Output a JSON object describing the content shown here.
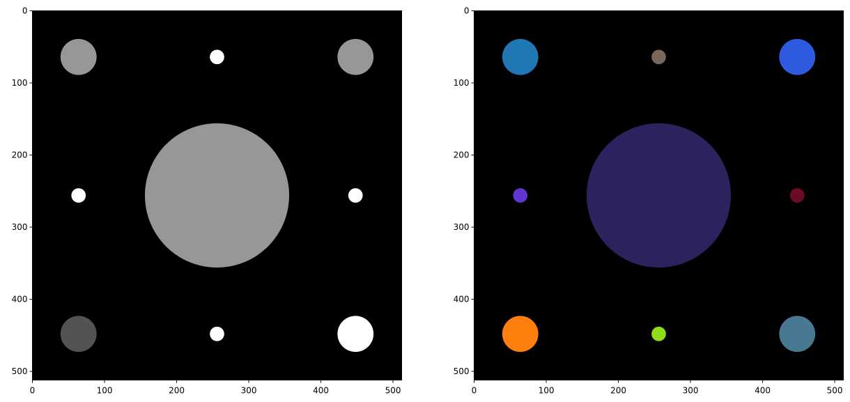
{
  "chart_data": [
    {
      "type": "image",
      "panel": "left",
      "colormap": "grayscale",
      "background": "#000000",
      "xlim": [
        0,
        512
      ],
      "ylim": [
        512,
        0
      ],
      "xticks": [
        0,
        100,
        200,
        300,
        400,
        500
      ],
      "yticks": [
        0,
        100,
        200,
        300,
        400,
        500
      ],
      "xtick_labels": [
        "0",
        "100",
        "200",
        "300",
        "400",
        "500"
      ],
      "ytick_labels": [
        "0",
        "100",
        "200",
        "300",
        "400",
        "500"
      ],
      "circles": [
        {
          "name": "top-left",
          "cx": 64,
          "cy": 64,
          "r": 25,
          "color": "#979797"
        },
        {
          "name": "top-center",
          "cx": 256,
          "cy": 64,
          "r": 10,
          "color": "#ffffff"
        },
        {
          "name": "top-right",
          "cx": 448,
          "cy": 64,
          "r": 25,
          "color": "#979797"
        },
        {
          "name": "middle-left",
          "cx": 64,
          "cy": 256,
          "r": 10,
          "color": "#ffffff"
        },
        {
          "name": "center",
          "cx": 256,
          "cy": 256,
          "r": 100,
          "color": "#979797"
        },
        {
          "name": "middle-right",
          "cx": 448,
          "cy": 256,
          "r": 10,
          "color": "#ffffff"
        },
        {
          "name": "bottom-left",
          "cx": 64,
          "cy": 448,
          "r": 25,
          "color": "#535353"
        },
        {
          "name": "bottom-center",
          "cx": 256,
          "cy": 448,
          "r": 10,
          "color": "#ffffff"
        },
        {
          "name": "bottom-right",
          "cx": 448,
          "cy": 448,
          "r": 25,
          "color": "#ffffff"
        }
      ]
    },
    {
      "type": "image",
      "panel": "right",
      "colormap": "label-colors",
      "background": "#000000",
      "xlim": [
        0,
        512
      ],
      "ylim": [
        512,
        0
      ],
      "xticks": [
        0,
        100,
        200,
        300,
        400,
        500
      ],
      "yticks": [
        0,
        100,
        200,
        300,
        400,
        500
      ],
      "xtick_labels": [
        "0",
        "100",
        "200",
        "300",
        "400",
        "500"
      ],
      "ytick_labels": [
        "0",
        "100",
        "200",
        "300",
        "400",
        "500"
      ],
      "circles": [
        {
          "name": "top-left",
          "cx": 64,
          "cy": 64,
          "r": 25,
          "color": "#1f77b4"
        },
        {
          "name": "top-center",
          "cx": 256,
          "cy": 64,
          "r": 10,
          "color": "#7b665c"
        },
        {
          "name": "top-right",
          "cx": 448,
          "cy": 64,
          "r": 25,
          "color": "#2e5ae0"
        },
        {
          "name": "middle-left",
          "cx": 64,
          "cy": 256,
          "r": 10,
          "color": "#6335d2"
        },
        {
          "name": "center",
          "cx": 256,
          "cy": 256,
          "r": 100,
          "color": "#2a235e"
        },
        {
          "name": "middle-right",
          "cx": 448,
          "cy": 256,
          "r": 10,
          "color": "#6b0c23"
        },
        {
          "name": "bottom-left",
          "cx": 64,
          "cy": 448,
          "r": 25,
          "color": "#ff7f0e"
        },
        {
          "name": "bottom-center",
          "cx": 256,
          "cy": 448,
          "r": 10,
          "color": "#8fdc1a"
        },
        {
          "name": "bottom-right",
          "cx": 448,
          "cy": 448,
          "r": 25,
          "color": "#487892"
        }
      ]
    }
  ]
}
